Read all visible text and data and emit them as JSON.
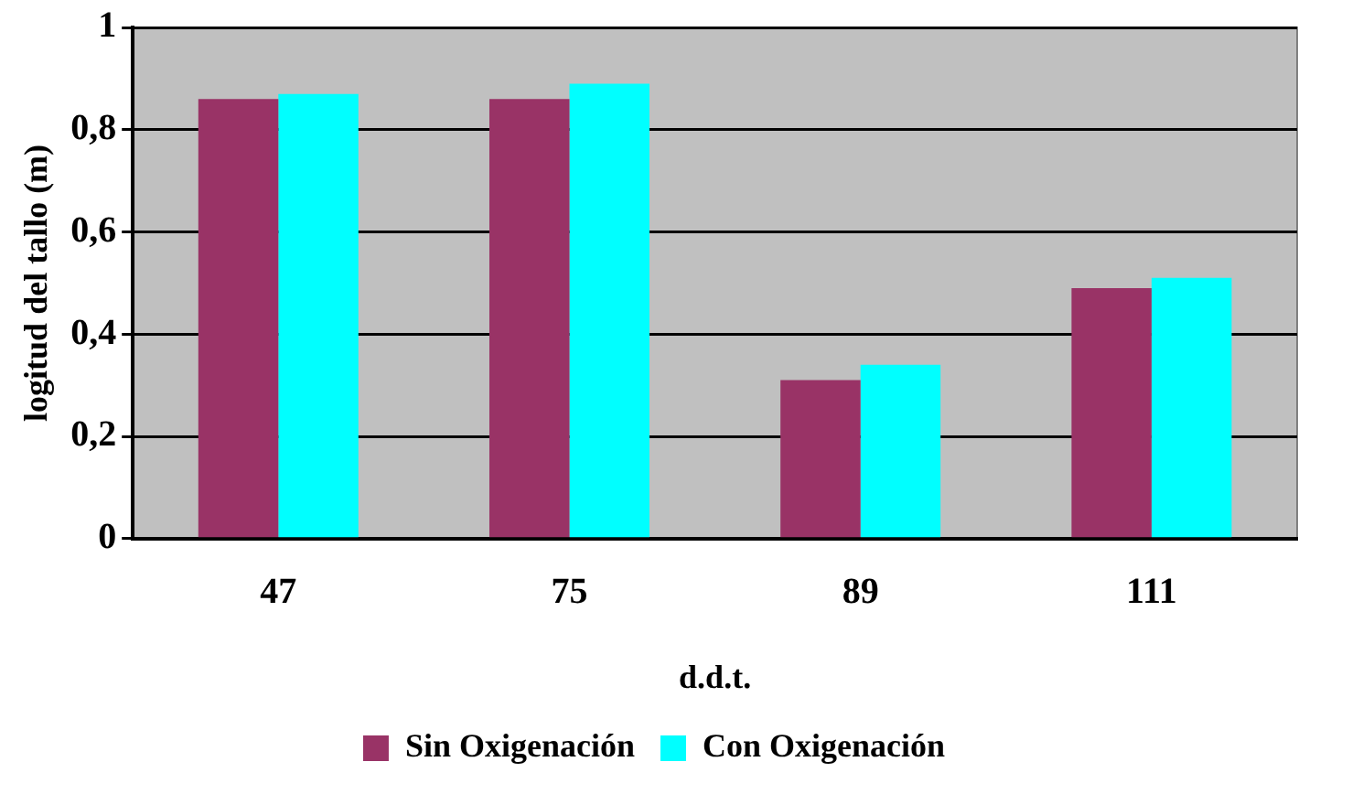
{
  "chart_data": {
    "type": "bar",
    "xlabel": "d.d.t.",
    "ylabel": "logitud del tallo (m)",
    "categories": [
      "47",
      "75",
      "89",
      "111"
    ],
    "series": [
      {
        "name": "Sin Oxigenación",
        "color": "#993366",
        "values": [
          0.86,
          0.86,
          0.31,
          0.49
        ]
      },
      {
        "name": "Con Oxigenación",
        "color": "#00ffff",
        "values": [
          0.87,
          0.89,
          0.34,
          0.51
        ]
      }
    ],
    "ylim": [
      0,
      1
    ],
    "yticks": [
      0,
      {
        "value": 0.2,
        "label": "0,2"
      },
      {
        "value": 0.4,
        "label": "0,4"
      },
      {
        "value": 0.6,
        "label": "0,6"
      },
      {
        "value": 0.8,
        "label": "0,8"
      },
      1
    ],
    "grid": "y",
    "legend": "bottom"
  }
}
